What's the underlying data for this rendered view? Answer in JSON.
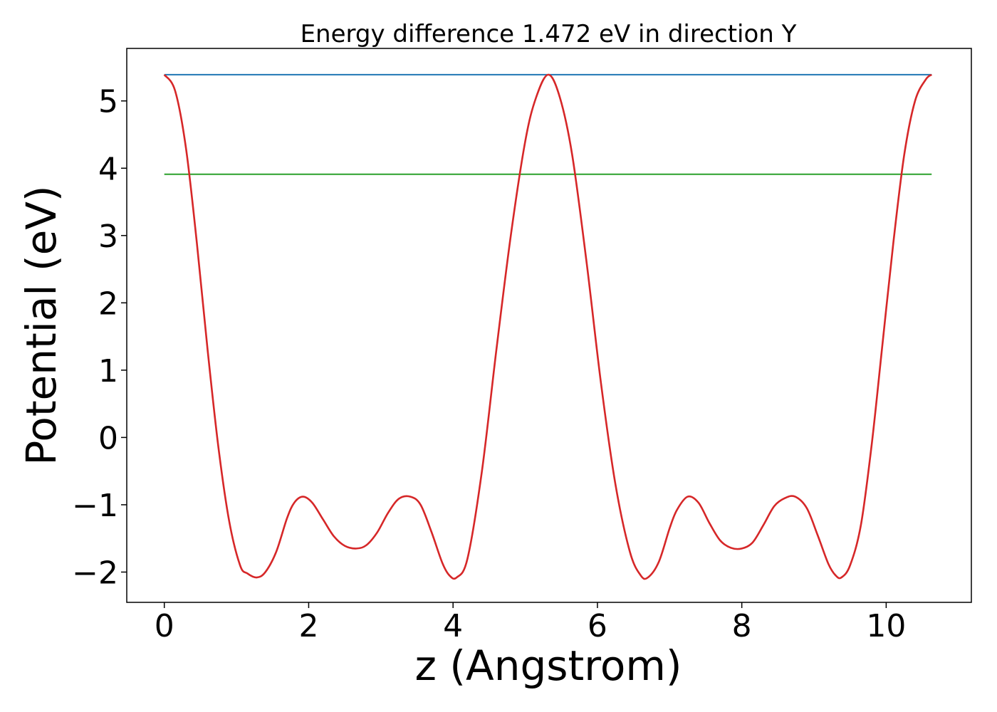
{
  "chart_data": {
    "type": "line",
    "title": "Energy difference 1.472 eV in direction Y",
    "xlabel": "z (Angstrom)",
    "ylabel": "Potential (eV)",
    "xlim": [
      -0.52,
      11.18
    ],
    "ylim": [
      -2.45,
      5.78
    ],
    "xticks": [
      0,
      2,
      4,
      6,
      8,
      10
    ],
    "xtick_labels": [
      "0",
      "2",
      "4",
      "6",
      "8",
      "10"
    ],
    "yticks": [
      -2,
      -1,
      0,
      1,
      2,
      3,
      4,
      5
    ],
    "ytick_labels": [
      "−2",
      "−1",
      "0",
      "1",
      "2",
      "3",
      "4",
      "5"
    ],
    "grid": false,
    "series": [
      {
        "color": "#1f77b4",
        "x": [
          0,
          10.63
        ],
        "y": [
          5.39,
          5.39
        ]
      },
      {
        "color": "#2ca02c",
        "x": [
          0,
          10.63
        ],
        "y": [
          3.91,
          3.91
        ]
      },
      {
        "color": "#d62728",
        "x": [
          0,
          0.15,
          0.3,
          0.45,
          0.6,
          0.75,
          0.9,
          1.05,
          1.15,
          1.28,
          1.4,
          1.55,
          1.7,
          1.8,
          1.92,
          2.05,
          2.2,
          2.35,
          2.5,
          2.66,
          2.8,
          2.95,
          3.1,
          3.25,
          3.41,
          3.55,
          3.7,
          3.85,
          3.95,
          4.05,
          4.2,
          4.4,
          4.6,
          4.8,
          5.0,
          5.15,
          5.32,
          5.48,
          5.65,
          5.85,
          6.05,
          6.25,
          6.45,
          6.6,
          6.7,
          6.85,
          7.0,
          7.1,
          7.25,
          7.4,
          7.55,
          7.7,
          7.85,
          8.0,
          8.15,
          8.3,
          8.45,
          8.6,
          8.74,
          8.9,
          9.05,
          9.2,
          9.3,
          9.38,
          9.5,
          9.65,
          9.8,
          9.95,
          10.1,
          10.25,
          10.4,
          10.55,
          10.63
        ],
        "y": [
          5.39,
          5.15,
          4.3,
          2.9,
          1.3,
          -0.15,
          -1.25,
          -1.9,
          -2.02,
          -2.08,
          -2.0,
          -1.7,
          -1.2,
          -0.97,
          -0.88,
          -0.97,
          -1.22,
          -1.47,
          -1.61,
          -1.65,
          -1.6,
          -1.41,
          -1.12,
          -0.91,
          -0.88,
          -1.0,
          -1.4,
          -1.86,
          -2.05,
          -2.08,
          -1.8,
          -0.5,
          1.3,
          3.0,
          4.4,
          5.05,
          5.39,
          5.05,
          4.2,
          2.6,
          0.8,
          -0.7,
          -1.7,
          -2.05,
          -2.08,
          -1.85,
          -1.35,
          -1.08,
          -0.88,
          -0.97,
          -1.27,
          -1.53,
          -1.64,
          -1.65,
          -1.56,
          -1.3,
          -1.02,
          -0.9,
          -0.88,
          -1.05,
          -1.45,
          -1.88,
          -2.05,
          -2.08,
          -1.9,
          -1.3,
          -0.1,
          1.4,
          2.9,
          4.2,
          5.0,
          5.32,
          5.39
        ]
      }
    ]
  }
}
